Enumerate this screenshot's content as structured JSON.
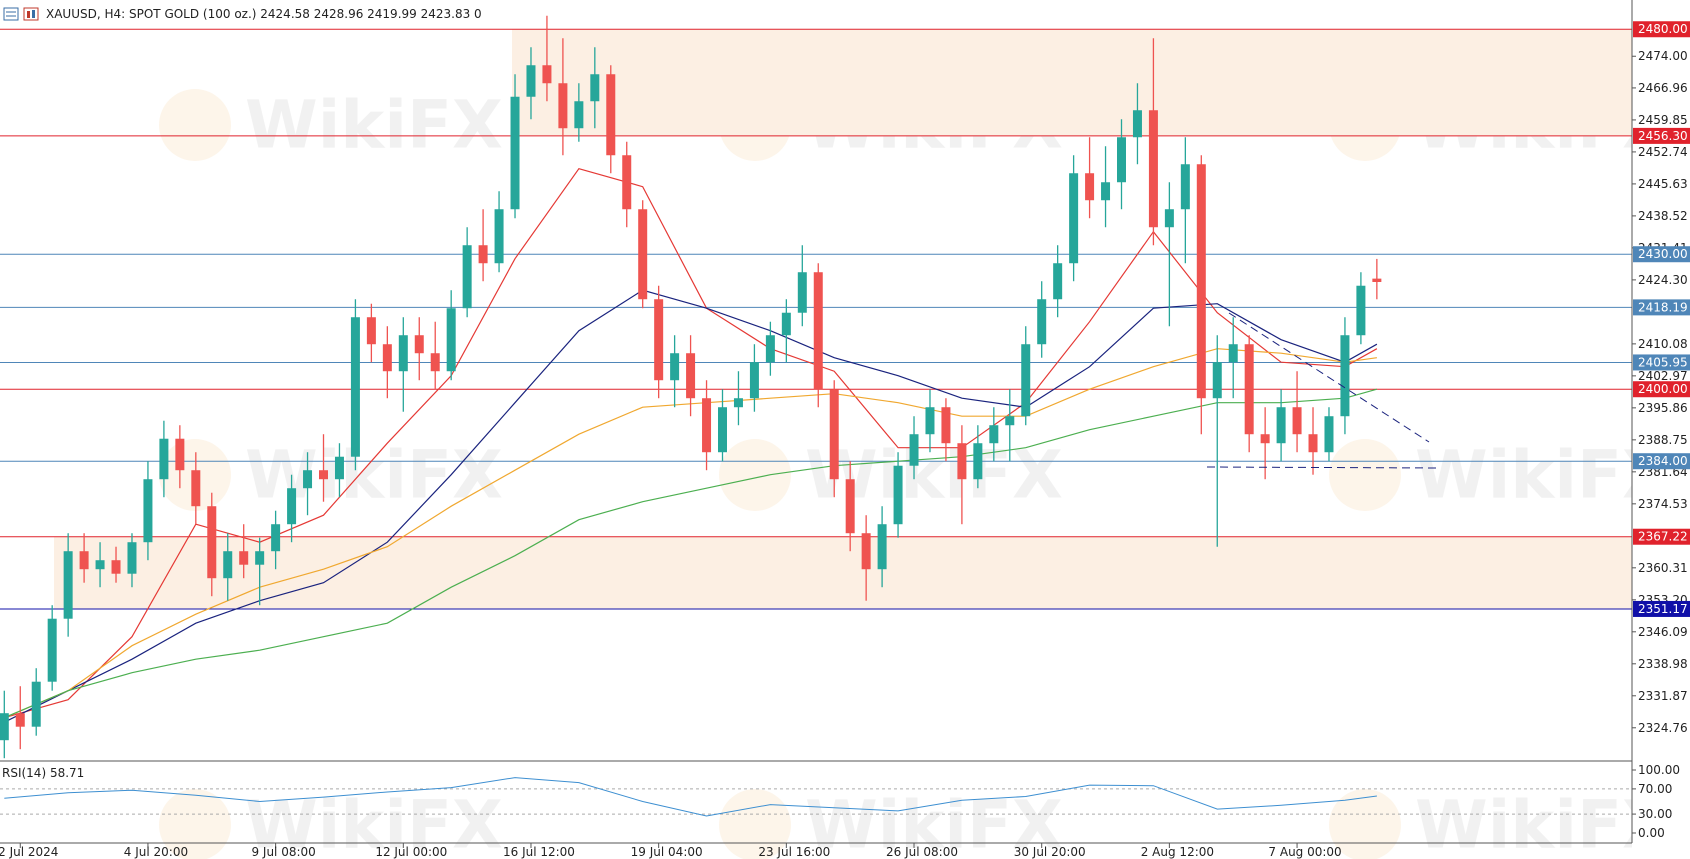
{
  "watermark": "WikiFX",
  "chart_data": {
    "type": "candlestick",
    "title": "XAUUSD, H4:  SPOT GOLD (100 oz.)  2424.58 2428.96 2419.99 2423.83  0",
    "up_color": "#26a69a",
    "down_color": "#ef5350",
    "categories": [
      null,
      "2 Jul 2024",
      null,
      null,
      null,
      null,
      null,
      null,
      null,
      "4 Jul 20:00",
      null,
      null,
      null,
      null,
      null,
      null,
      null,
      "9 Jul 08:00",
      null,
      null,
      null,
      null,
      null,
      null,
      null,
      "12 Jul 00:00",
      null,
      null,
      null,
      null,
      null,
      null,
      null,
      "16 Jul 12:00",
      null,
      null,
      null,
      null,
      null,
      null,
      null,
      "19 Jul 04:00",
      null,
      null,
      null,
      null,
      null,
      null,
      null,
      "23 Jul 16:00",
      null,
      null,
      null,
      null,
      null,
      null,
      null,
      "26 Jul 08:00",
      null,
      null,
      null,
      null,
      null,
      null,
      null,
      "30 Jul 20:00",
      null,
      null,
      null,
      null,
      null,
      null,
      null,
      "2 Aug 12:00",
      null,
      null,
      null,
      null,
      null,
      null,
      null,
      "7 Aug 00:00",
      null,
      null,
      null,
      null,
      null
    ],
    "open": [
      2322,
      2328,
      2325,
      2335,
      2349,
      2364,
      2360,
      2362,
      2359,
      2366,
      2380,
      2389,
      2382,
      2374,
      2358,
      2364,
      2361,
      2364,
      2370,
      2378,
      2382,
      2380,
      2385,
      2416,
      2410,
      2404,
      2412,
      2408,
      2404,
      2418,
      2432,
      2428,
      2440,
      2465,
      2472,
      2468,
      2458,
      2464,
      2470,
      2452,
      2440,
      2420,
      2402,
      2408,
      2398,
      2386,
      2396,
      2398,
      2406,
      2412,
      2417,
      2426,
      2400,
      2380,
      2368,
      2360,
      2370,
      2383,
      2390,
      2396,
      2388,
      2380,
      2388,
      2392,
      2394,
      2410,
      2420,
      2428,
      2448,
      2442,
      2446,
      2456,
      2462,
      2436,
      2440,
      2450,
      2398,
      2406,
      2410,
      2390,
      2388,
      2396,
      2390,
      2386,
      2394,
      2412,
      2424.58
    ],
    "high": [
      2333,
      2334,
      2338,
      2352,
      2368,
      2368,
      2366,
      2365,
      2368,
      2384,
      2393,
      2392,
      2386,
      2377,
      2368,
      2370,
      2367,
      2373,
      2381,
      2386,
      2390,
      2388,
      2420,
      2419,
      2414,
      2416,
      2416,
      2415,
      2422,
      2436,
      2440,
      2444,
      2470,
      2476,
      2483,
      2478,
      2468,
      2476,
      2472,
      2455,
      2442,
      2423,
      2412,
      2412,
      2402,
      2400,
      2404,
      2410,
      2415,
      2420,
      2432,
      2428,
      2402,
      2384,
      2372,
      2374,
      2386,
      2394,
      2400,
      2398,
      2392,
      2392,
      2396,
      2400,
      2414,
      2424,
      2432,
      2452,
      2456,
      2454,
      2460,
      2468,
      2478,
      2446,
      2456,
      2452,
      2412,
      2416,
      2412,
      2396,
      2400,
      2404,
      2396,
      2396,
      2416,
      2426,
      2428.96
    ],
    "low": [
      2318,
      2320,
      2323,
      2333,
      2345,
      2357,
      2356,
      2357,
      2356,
      2362,
      2376,
      2378,
      2370,
      2354,
      2353,
      2358,
      2352,
      2360,
      2366,
      2372,
      2375,
      2376,
      2382,
      2406,
      2398,
      2395,
      2402,
      2400,
      2402,
      2416,
      2424,
      2426,
      2438,
      2460,
      2464,
      2452,
      2455,
      2458,
      2448,
      2436,
      2418,
      2398,
      2396,
      2394,
      2382,
      2384,
      2392,
      2395,
      2403,
      2406,
      2414,
      2396,
      2376,
      2364,
      2353,
      2356,
      2367,
      2380,
      2386,
      2384,
      2370,
      2378,
      2384,
      2384,
      2392,
      2407,
      2416,
      2424,
      2438,
      2436,
      2440,
      2450,
      2432,
      2414,
      2428,
      2390,
      2365,
      2398,
      2386,
      2380,
      2384,
      2386,
      2381,
      2384,
      2390,
      2410,
      2419.99
    ],
    "close": [
      2328,
      2325,
      2335,
      2349,
      2364,
      2360,
      2362,
      2359,
      2366,
      2380,
      2389,
      2382,
      2374,
      2358,
      2364,
      2361,
      2364,
      2370,
      2378,
      2382,
      2380,
      2385,
      2416,
      2410,
      2404,
      2412,
      2408,
      2404,
      2418,
      2432,
      2428,
      2440,
      2465,
      2472,
      2468,
      2458,
      2464,
      2470,
      2452,
      2440,
      2420,
      2402,
      2408,
      2398,
      2386,
      2396,
      2398,
      2406,
      2412,
      2417,
      2426,
      2400,
      2380,
      2368,
      2360,
      2370,
      2383,
      2390,
      2396,
      2388,
      2380,
      2388,
      2392,
      2394,
      2410,
      2420,
      2428,
      2448,
      2442,
      2446,
      2456,
      2462,
      2436,
      2440,
      2450,
      2398,
      2406,
      2410,
      2390,
      2388,
      2396,
      2390,
      2386,
      2394,
      2412,
      2423,
      2423.83
    ],
    "overlays": [
      {
        "color": "#e53935",
        "x": [
          0,
          4,
          8,
          12,
          16,
          20,
          24,
          28,
          32,
          36,
          40,
          44,
          48,
          52,
          56,
          60,
          64,
          68,
          72,
          76,
          80,
          84,
          86
        ],
        "values": [
          2327,
          2331,
          2345,
          2370,
          2366,
          2372,
          2388,
          2403,
          2429,
          2449,
          2445,
          2418,
          2409,
          2404,
          2387,
          2387,
          2397,
          2415,
          2435,
          2417,
          2406,
          2405,
          2409
        ]
      },
      {
        "color": "#1a237e",
        "x": [
          0,
          4,
          8,
          12,
          16,
          20,
          24,
          28,
          32,
          36,
          40,
          44,
          48,
          52,
          56,
          60,
          64,
          68,
          72,
          76,
          80,
          84,
          86
        ],
        "values": [
          2326,
          2333,
          2340,
          2348,
          2353,
          2357,
          2366,
          2381,
          2397,
          2413,
          2422,
          2418,
          2413,
          2407,
          2403,
          2398,
          2396,
          2405,
          2418,
          2419,
          2411,
          2406,
          2410
        ]
      },
      {
        "color": "#f0a830",
        "x": [
          0,
          4,
          8,
          12,
          16,
          20,
          24,
          28,
          32,
          36,
          40,
          44,
          48,
          52,
          56,
          60,
          64,
          68,
          72,
          76,
          80,
          84,
          86
        ],
        "values": [
          2327,
          2333,
          2343,
          2350,
          2356,
          2360,
          2365,
          2374,
          2382,
          2390,
          2396,
          2397,
          2398,
          2399,
          2397,
          2394,
          2394,
          2400,
          2405,
          2409,
          2408,
          2406,
          2407
        ]
      },
      {
        "color": "#4caf50",
        "x": [
          0,
          4,
          8,
          12,
          16,
          20,
          24,
          28,
          32,
          36,
          40,
          44,
          48,
          52,
          56,
          60,
          64,
          68,
          72,
          76,
          80,
          84,
          86
        ],
        "values": [
          2327,
          2333,
          2337,
          2340,
          2342,
          2345,
          2348,
          2356,
          2363,
          2371,
          2375,
          2378,
          2381,
          2383,
          2384,
          2385,
          2387,
          2391,
          2394,
          2397,
          2397,
          2398,
          2400
        ]
      }
    ],
    "levels": [
      {
        "value": 2480,
        "label": "2480.00",
        "color": "#e0222c"
      },
      {
        "value": 2456.3,
        "label": "2456.30",
        "color": "#e0222c"
      },
      {
        "value": 2430,
        "label": "2430.00",
        "color": "#4f86b8"
      },
      {
        "value": 2418.19,
        "label": "2418.19",
        "color": "#4f86b8"
      },
      {
        "value": 2405.95,
        "label": "2405.95",
        "color": "#4f86b8"
      },
      {
        "value": 2400,
        "label": "2400.00",
        "color": "#e0222c"
      },
      {
        "value": 2384,
        "label": "2384.00",
        "color": "#4f86b8"
      },
      {
        "value": 2367.22,
        "label": "2367.22",
        "color": "#e0222c"
      },
      {
        "value": 2351.17,
        "label": "2351.17",
        "color": "#1010a8"
      }
    ],
    "zone_color": "#fcefe3",
    "ylim": [
      2317.6,
      2486.5
    ],
    "yticks": [
      {
        "value": 2474,
        "label": "2474.00"
      },
      2466.96,
      2459.85,
      2452.74,
      2445.63,
      2438.52,
      2431.41,
      {
        "value": 2424.3,
        "label": "2424.30"
      },
      2410.08,
      2402.97,
      2395.86,
      2388.75,
      2381.64,
      2374.53,
      2360.31,
      {
        "value": 2353.2,
        "label": "2353.20"
      },
      2346.09,
      2338.98,
      2331.87,
      2324.76
    ],
    "rsi": {
      "title": "RSI(14) 58.71",
      "color": "#3d8fd1",
      "x": [
        0,
        4,
        8,
        12,
        16,
        20,
        24,
        28,
        32,
        36,
        40,
        44,
        48,
        52,
        56,
        60,
        64,
        68,
        72,
        76,
        80,
        84,
        86
      ],
      "values": [
        55,
        64,
        68,
        60,
        50,
        57,
        65,
        72,
        88,
        80,
        50,
        27,
        45,
        40,
        35,
        52,
        58,
        76,
        75,
        38,
        44,
        52,
        58.71
      ],
      "ylim": [
        -15.9,
        112.7
      ],
      "yticks": [
        {
          "value": 100,
          "label": "100.00"
        },
        {
          "value": 70,
          "label": "70.00"
        },
        {
          "value": 30,
          "label": "30.00"
        },
        {
          "value": 0,
          "label": "0.00"
        }
      ],
      "levels": [
        70,
        30
      ]
    }
  }
}
